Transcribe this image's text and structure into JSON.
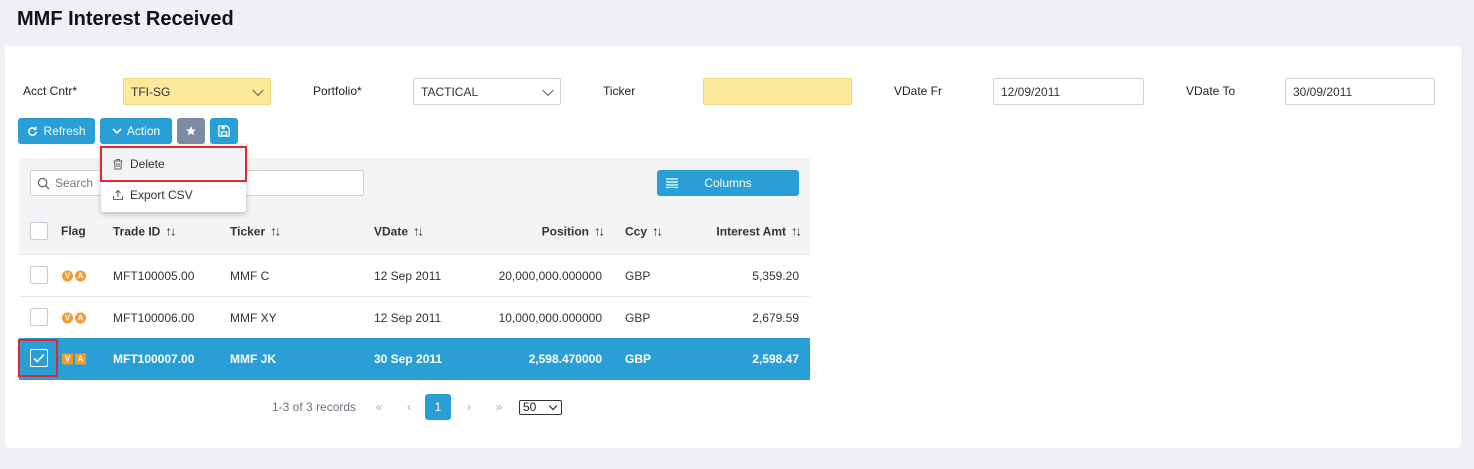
{
  "page": {
    "title": "MMF Interest Received"
  },
  "filters": {
    "acct_cntr": {
      "label": "Acct Cntr*",
      "value": "TFI-SG"
    },
    "portfolio": {
      "label": "Portfolio*",
      "value": "TACTICAL"
    },
    "ticker": {
      "label": "Ticker",
      "value": ""
    },
    "vdate_fr": {
      "label": "VDate Fr",
      "value": "12/09/2011"
    },
    "vdate_to": {
      "label": "VDate To",
      "value": "30/09/2011"
    }
  },
  "toolbar": {
    "refresh_label": "Refresh",
    "action_label": "Action"
  },
  "action_menu": {
    "items": [
      {
        "label": "Delete"
      },
      {
        "label": "Export CSV"
      }
    ]
  },
  "grid": {
    "search_placeholder": "Search",
    "columns_label": "Columns",
    "headers": {
      "flag": "Flag",
      "trade_id": "Trade ID",
      "ticker": "Ticker",
      "vdate": "VDate",
      "position": "Position",
      "ccy": "Ccy",
      "interest_amt": "Interest Amt"
    },
    "rows": [
      {
        "flags": [
          "V",
          "A"
        ],
        "trade_id": "MFT100005.00",
        "ticker": "MMF C",
        "vdate": "12 Sep 2011",
        "position": "20,000,000.000000",
        "ccy": "GBP",
        "interest_amt": "5,359.20",
        "selected": false
      },
      {
        "flags": [
          "V",
          "A"
        ],
        "trade_id": "MFT100006.00",
        "ticker": "MMF XY",
        "vdate": "12 Sep 2011",
        "position": "10,000,000.000000",
        "ccy": "GBP",
        "interest_amt": "2,679.59",
        "selected": false
      },
      {
        "flags": [
          "V",
          "A"
        ],
        "trade_id": "MFT100007.00",
        "ticker": "MMF JK",
        "vdate": "30 Sep 2011",
        "position": "2,598.470000",
        "ccy": "GBP",
        "interest_amt": "2,598.47",
        "selected": true
      }
    ]
  },
  "pager": {
    "records": "1-3 of 3 records",
    "current_page": "1",
    "page_size": "50",
    "first": "«",
    "prev": "‹",
    "next": "›",
    "last": "»"
  },
  "colors": {
    "accent": "#2a9fd6",
    "required_field": "#fde99a",
    "flag": "#f39a2b",
    "highlight": "#e0282e"
  }
}
